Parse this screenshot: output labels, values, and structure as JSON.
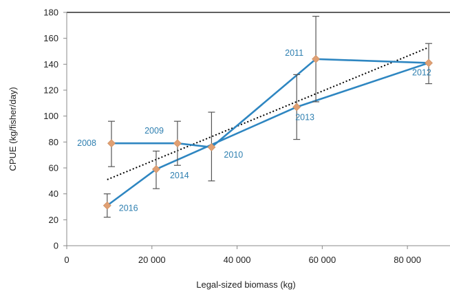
{
  "chart_data": {
    "type": "line",
    "title": "",
    "xlabel": "Legal-sized biomass (kg)",
    "ylabel": "CPUE (kg/fisher/day)",
    "xlim": [
      0,
      90000
    ],
    "ylim": [
      0,
      180
    ],
    "x_ticks": [
      0,
      20000,
      40000,
      60000,
      80000
    ],
    "x_tick_labels": [
      "0",
      "20 000",
      "40 000",
      "60 000",
      "80 000"
    ],
    "y_ticks": [
      0,
      20,
      40,
      60,
      80,
      100,
      120,
      140,
      160,
      180
    ],
    "y_tick_labels": [
      "0",
      "20",
      "40",
      "60",
      "80",
      "100",
      "120",
      "140",
      "160",
      "180"
    ],
    "grid": false,
    "series": [
      {
        "type": "line",
        "points": [
          {
            "label": "2008",
            "x": 10500,
            "y": 79,
            "err_low": 61,
            "err_high": 96
          },
          {
            "label": "2009",
            "x": 26000,
            "y": 79,
            "err_low": 62,
            "err_high": 96
          },
          {
            "label": "2010",
            "x": 34000,
            "y": 76,
            "err_low": 50,
            "err_high": 103
          },
          {
            "label": "2011",
            "x": 58500,
            "y": 144,
            "err_low": 111,
            "err_high": 177
          },
          {
            "label": "2012",
            "x": 85000,
            "y": 141,
            "err_low": 125,
            "err_high": 156
          },
          {
            "label": "2013",
            "x": 54000,
            "y": 107,
            "err_low": 82,
            "err_high": 132
          },
          {
            "label": "2014",
            "x": 21000,
            "y": 59,
            "err_low": 44,
            "err_high": 73
          },
          {
            "label": "2016",
            "x": 9500,
            "y": 31,
            "err_low": 22,
            "err_high": 40
          }
        ]
      }
    ],
    "trendline": {
      "style": "dotted",
      "x": [
        9500,
        85000
      ],
      "y": [
        51,
        153
      ]
    },
    "colors": {
      "line": "#2e86c1",
      "marker": "#e0a073",
      "label": "#2e7fb0",
      "error_bar": "#555555",
      "trend": "#000000",
      "axis": "#888888"
    }
  }
}
